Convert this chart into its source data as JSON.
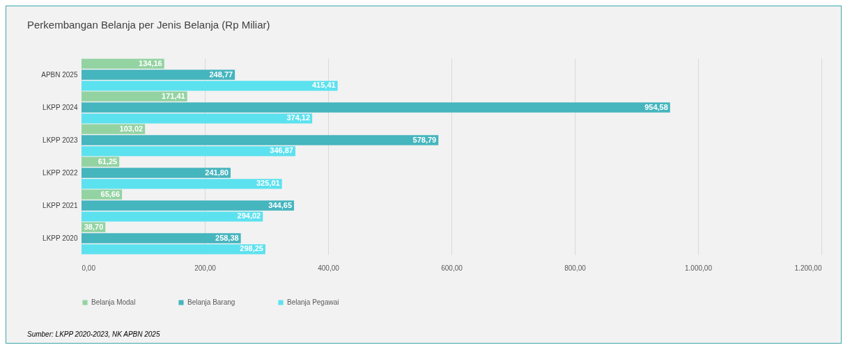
{
  "chart_data": {
    "type": "bar",
    "orientation": "horizontal",
    "title": "Perkembangan Belanja per Jenis Belanja (Rp Miliar)",
    "categories": [
      "APBN 2025",
      "LKPP 2024",
      "LKPP 2023",
      "LKPP 2022",
      "LKPP 2021",
      "LKPP 2020"
    ],
    "series": [
      {
        "name": "Belanja Modal",
        "color": "#93d3a2",
        "values": [
          134.16,
          171.41,
          103.02,
          61.25,
          65.66,
          38.7
        ],
        "value_labels": [
          "134,16",
          "171,41",
          "103,02",
          "61,25",
          "65,66",
          "38,70"
        ]
      },
      {
        "name": "Belanja Barang",
        "color": "#45b5be",
        "values": [
          248.77,
          954.58,
          578.79,
          241.8,
          344.65,
          258.38
        ],
        "value_labels": [
          "248,77",
          "954,58",
          "578,79",
          "241,80",
          "344,65",
          "258,38"
        ]
      },
      {
        "name": "Belanja Pegawai",
        "color": "#5ce1ef",
        "values": [
          415.41,
          374.12,
          346.87,
          325.01,
          294.02,
          298.25
        ],
        "value_labels": [
          "415,41",
          "374,12",
          "346,87",
          "325,01",
          "294,02",
          "298,25"
        ]
      }
    ],
    "xlim": [
      0,
      1200
    ],
    "xticks": [
      {
        "value": 0,
        "label": "0,00"
      },
      {
        "value": 200,
        "label": "200,00"
      },
      {
        "value": 400,
        "label": "400,00"
      },
      {
        "value": 600,
        "label": "600,00"
      },
      {
        "value": 800,
        "label": "800,00"
      },
      {
        "value": 1000,
        "label": "1.000,00"
      },
      {
        "value": 1200,
        "label": "1.200,00"
      }
    ],
    "grid": "x",
    "legend": "bottom",
    "annotations": [
      "Sumber: LKPP 2020-2023, NK APBN 2025"
    ]
  }
}
